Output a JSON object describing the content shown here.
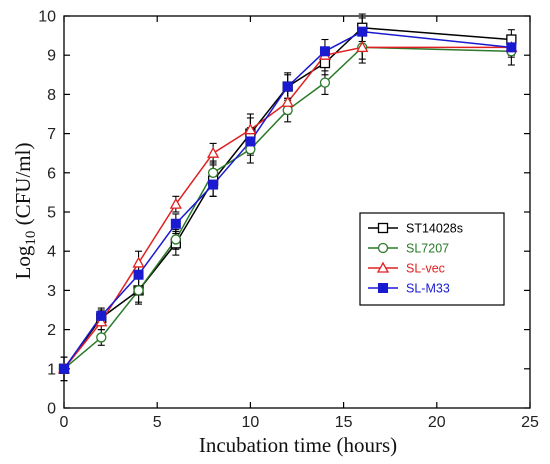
{
  "chart_data": {
    "type": "line",
    "xlabel": "Incubation time (hours)",
    "ylabel_base": "Log",
    "ylabel_sub": "10",
    "ylabel_rest": " (CFU/ml)",
    "xlim": [
      0,
      25
    ],
    "ylim": [
      0,
      10
    ],
    "xticks": [
      "0",
      "5",
      "10",
      "15",
      "20",
      "25"
    ],
    "yticks": [
      "0",
      "1",
      "2",
      "3",
      "4",
      "5",
      "6",
      "7",
      "8",
      "9",
      "10"
    ],
    "x": [
      0,
      2,
      4,
      6,
      8,
      10,
      12,
      14,
      16,
      24
    ],
    "grid": false,
    "legend_position": "right",
    "series": [
      {
        "name": "ST14028s",
        "color": "#000000",
        "marker": "square-open",
        "values": [
          1.0,
          2.3,
          3.0,
          4.2,
          5.8,
          7.0,
          8.2,
          8.8,
          9.7,
          9.4
        ],
        "errors": [
          0.3,
          0.2,
          0.35,
          0.3,
          0.4,
          0.5,
          0.35,
          0.3,
          0.35,
          0.25
        ]
      },
      {
        "name": "SL7207",
        "color": "#2a7a2a",
        "marker": "circle-open",
        "values": [
          1.0,
          1.8,
          3.0,
          4.3,
          6.0,
          6.6,
          7.6,
          8.3,
          9.2,
          9.1
        ],
        "errors": [
          0.3,
          0.2,
          0.3,
          0.25,
          0.3,
          0.35,
          0.3,
          0.3,
          0.4,
          0.35
        ]
      },
      {
        "name": "SL-vec",
        "color": "#e02020",
        "marker": "triangle-open",
        "values": [
          1.0,
          2.2,
          3.7,
          5.2,
          6.5,
          7.1,
          7.8,
          9.0,
          9.2,
          9.2
        ],
        "errors": [
          0.3,
          0.2,
          0.3,
          0.2,
          0.25,
          0.3,
          0.3,
          0.2,
          0.3,
          0.2
        ]
      },
      {
        "name": "SL-M33",
        "color": "#1a1ad0",
        "marker": "square-filled",
        "values": [
          1.0,
          2.35,
          3.4,
          4.7,
          5.7,
          6.8,
          8.2,
          9.1,
          9.6,
          9.2
        ],
        "errors": [
          0.3,
          0.2,
          0.3,
          0.25,
          0.3,
          0.35,
          0.3,
          0.3,
          0.35,
          0.25
        ]
      }
    ]
  }
}
